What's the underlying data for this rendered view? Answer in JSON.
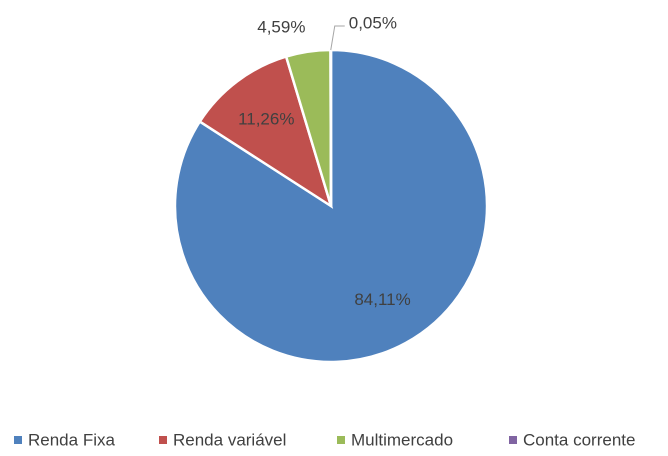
{
  "chart_data": {
    "type": "pie",
    "categories": [
      "Renda Fixa",
      "Renda variável",
      "Multimercado",
      "Conta corrente"
    ],
    "values": [
      84.11,
      11.26,
      4.59,
      0.05
    ],
    "value_labels": [
      "84,11%",
      "11,26%",
      "4,59%",
      "0,05%"
    ],
    "colors": [
      "#4f81bd",
      "#c0504d",
      "#9bbb59",
      "#8064a2"
    ],
    "legend": "bottom"
  }
}
